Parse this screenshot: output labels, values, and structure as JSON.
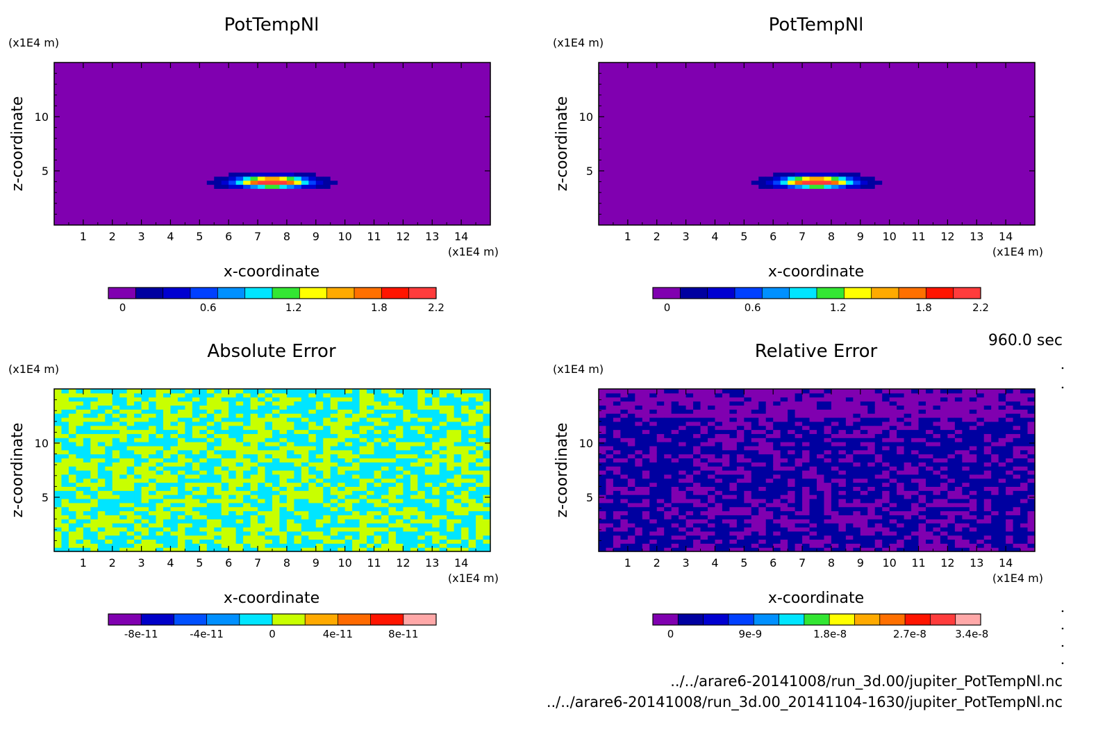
{
  "time_label": "960.0 sec",
  "footer": {
    "file_1": "../../arare6-20141008/run_3d.00/jupiter_PotTempNl.nc",
    "file_2": "../../arare6-20141008/run_3d.00_20141104-1630/jupiter_PotTempNl.nc"
  },
  "chart_data": [
    {
      "type": "heatmap",
      "title": "PotTempNl",
      "xlabel": "x-coordinate",
      "ylabel": "z-coordinate",
      "x_unit": "(x1E4 m)",
      "y_unit": "(x1E4 m)",
      "xlim": [
        0,
        15
      ],
      "ylim": [
        0,
        15
      ],
      "x_ticks": [
        1,
        2,
        3,
        4,
        5,
        6,
        7,
        8,
        9,
        10,
        11,
        12,
        13,
        14
      ],
      "y_ticks": [
        5,
        10
      ],
      "field": "temperature",
      "colorbar": {
        "colors": [
          "#8000b0",
          "#0000a0",
          "#0000d0",
          "#0040ff",
          "#0090ff",
          "#00e5ff",
          "#33e633",
          "#ffff00",
          "#ffaa00",
          "#ff7000",
          "#ff1500",
          "#ff3c3c"
        ],
        "ticks": [
          0,
          0.6,
          1.2,
          1.8,
          2.2
        ],
        "tick_labels": [
          "0",
          "0.6",
          "1.2",
          "1.8",
          "2.2"
        ],
        "range": [
          -0.1,
          2.2
        ]
      }
    },
    {
      "type": "heatmap",
      "title": "PotTempNl",
      "xlabel": "x-coordinate",
      "ylabel": "z-coordinate",
      "x_unit": "(x1E4 m)",
      "y_unit": "(x1E4 m)",
      "xlim": [
        0,
        15
      ],
      "ylim": [
        0,
        15
      ],
      "x_ticks": [
        1,
        2,
        3,
        4,
        5,
        6,
        7,
        8,
        9,
        10,
        11,
        12,
        13,
        14
      ],
      "y_ticks": [
        5,
        10
      ],
      "field": "temperature",
      "colorbar": {
        "colors": [
          "#8000b0",
          "#0000a0",
          "#0000d0",
          "#0040ff",
          "#0090ff",
          "#00e5ff",
          "#33e633",
          "#ffff00",
          "#ffaa00",
          "#ff7000",
          "#ff1500",
          "#ff3c3c"
        ],
        "ticks": [
          0,
          0.6,
          1.2,
          1.8,
          2.2
        ],
        "tick_labels": [
          "0",
          "0.6",
          "1.2",
          "1.8",
          "2.2"
        ],
        "range": [
          -0.1,
          2.2
        ]
      }
    },
    {
      "type": "heatmap",
      "title": "Absolute Error",
      "xlabel": "x-coordinate",
      "ylabel": "z-coordinate",
      "x_unit": "(x1E4 m)",
      "y_unit": "(x1E4 m)",
      "xlim": [
        0,
        15
      ],
      "ylim": [
        0,
        15
      ],
      "x_ticks": [
        1,
        2,
        3,
        4,
        5,
        6,
        7,
        8,
        9,
        10,
        11,
        12,
        13,
        14
      ],
      "y_ticks": [
        5,
        10
      ],
      "field": "abs_noise",
      "colorbar": {
        "colors": [
          "#8000b0",
          "#0000c8",
          "#0050ff",
          "#0090ff",
          "#00e5ff",
          "#c8ff00",
          "#ffaa00",
          "#ff6a00",
          "#ff1500",
          "#ffa8a8"
        ],
        "ticks": [
          -8e-11,
          -4e-11,
          0,
          4e-11,
          8e-11
        ],
        "tick_labels": [
          "-8e-11",
          "-4e-11",
          "0",
          "4e-11",
          "8e-11"
        ],
        "range": [
          -1e-10,
          1e-10
        ]
      }
    },
    {
      "type": "heatmap",
      "title": "Relative Error",
      "xlabel": "x-coordinate",
      "ylabel": "z-coordinate",
      "x_unit": "(x1E4 m)",
      "y_unit": "(x1E4 m)",
      "xlim": [
        0,
        15
      ],
      "ylim": [
        0,
        15
      ],
      "x_ticks": [
        1,
        2,
        3,
        4,
        5,
        6,
        7,
        8,
        9,
        10,
        11,
        12,
        13,
        14
      ],
      "y_ticks": [
        5,
        10
      ],
      "field": "rel_noise",
      "colorbar": {
        "colors": [
          "#8000b0",
          "#0000a0",
          "#0000d0",
          "#0040ff",
          "#0090ff",
          "#00e5ff",
          "#33e633",
          "#ffff00",
          "#ffaa00",
          "#ff7000",
          "#ff1500",
          "#ff3c3c",
          "#ffa8a8"
        ],
        "ticks": [
          0,
          9e-09,
          1.8e-08,
          2.7e-08,
          3.4e-08
        ],
        "tick_labels": [
          "0",
          "9e-9",
          "1.8e-8",
          "2.7e-8",
          "3.4e-8"
        ],
        "range": [
          -2e-09,
          3.5e-08
        ]
      }
    }
  ]
}
